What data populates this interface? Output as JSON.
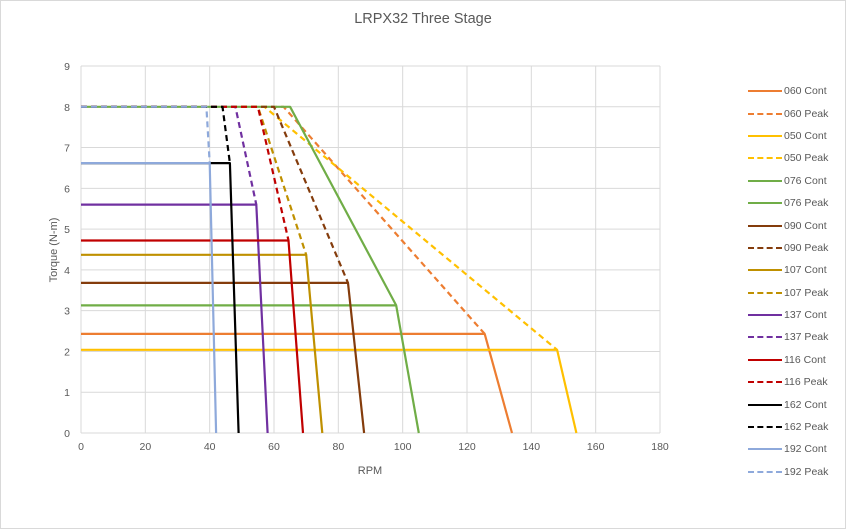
{
  "chart_data": {
    "type": "line",
    "title": "LRPX32 Three Stage",
    "xlabel": "RPM",
    "ylabel": "Torque (N-m)",
    "xlim": [
      0,
      180
    ],
    "ylim": [
      0,
      9
    ],
    "x_ticks": [
      0,
      20,
      40,
      60,
      80,
      100,
      120,
      140,
      160,
      180
    ],
    "y_ticks": [
      0,
      1,
      2,
      3,
      4,
      5,
      6,
      7,
      8,
      9
    ],
    "grid": true,
    "legend_position": "right",
    "series": [
      {
        "name": "060 Cont",
        "color": "#ED7D31",
        "dash": false,
        "points": [
          [
            0,
            2.43
          ],
          [
            125.5,
            2.43
          ],
          [
            134,
            0
          ]
        ]
      },
      {
        "name": "060 Peak",
        "color": "#ED7D31",
        "dash": true,
        "points": [
          [
            0,
            8
          ],
          [
            63,
            8
          ],
          [
            125.5,
            2.43
          ]
        ]
      },
      {
        "name": "050 Cont",
        "color": "#FFC000",
        "dash": false,
        "points": [
          [
            0,
            2.04
          ],
          [
            148,
            2.04
          ],
          [
            154,
            0
          ]
        ]
      },
      {
        "name": "050 Peak",
        "color": "#FFC000",
        "dash": true,
        "points": [
          [
            0,
            8
          ],
          [
            57,
            8
          ],
          [
            148,
            2.04
          ]
        ]
      },
      {
        "name": "076 Cont",
        "color": "#70AD47",
        "dash": false,
        "points": [
          [
            0,
            3.13
          ],
          [
            98,
            3.13
          ],
          [
            105,
            0
          ]
        ]
      },
      {
        "name": "076 Peak",
        "color": "#70AD47",
        "dash": false,
        "points": [
          [
            0,
            8
          ],
          [
            65,
            8
          ],
          [
            98,
            3.13
          ]
        ]
      },
      {
        "name": "090 Cont",
        "color": "#843C0C",
        "dash": false,
        "points": [
          [
            0,
            3.68
          ],
          [
            83,
            3.68
          ],
          [
            88,
            0
          ]
        ]
      },
      {
        "name": "090 Peak",
        "color": "#843C0C",
        "dash": true,
        "points": [
          [
            0,
            8
          ],
          [
            60,
            8
          ],
          [
            83,
            3.68
          ]
        ]
      },
      {
        "name": "107 Cont",
        "color": "#BF9000",
        "dash": false,
        "points": [
          [
            0,
            4.37
          ],
          [
            70,
            4.37
          ],
          [
            75,
            0
          ]
        ]
      },
      {
        "name": "107 Peak",
        "color": "#BF9000",
        "dash": true,
        "points": [
          [
            0,
            8
          ],
          [
            55,
            8
          ],
          [
            70,
            4.37
          ]
        ]
      },
      {
        "name": "137 Cont",
        "color": "#7030A0",
        "dash": false,
        "points": [
          [
            0,
            5.6
          ],
          [
            54.5,
            5.6
          ],
          [
            58,
            0
          ]
        ]
      },
      {
        "name": "137 Peak",
        "color": "#7030A0",
        "dash": true,
        "points": [
          [
            0,
            8
          ],
          [
            48,
            8
          ],
          [
            54.5,
            5.6
          ]
        ]
      },
      {
        "name": "116 Cont",
        "color": "#C00000",
        "dash": false,
        "points": [
          [
            0,
            4.72
          ],
          [
            64.5,
            4.72
          ],
          [
            69,
            0
          ]
        ]
      },
      {
        "name": "116 Peak",
        "color": "#C00000",
        "dash": true,
        "points": [
          [
            0,
            8
          ],
          [
            55,
            8
          ],
          [
            64.5,
            4.72
          ]
        ]
      },
      {
        "name": "162 Cont",
        "color": "#000000",
        "dash": false,
        "points": [
          [
            0,
            6.62
          ],
          [
            46.3,
            6.62
          ],
          [
            49,
            0
          ]
        ]
      },
      {
        "name": "162 Peak",
        "color": "#000000",
        "dash": true,
        "points": [
          [
            0,
            8
          ],
          [
            44,
            8
          ],
          [
            46.3,
            6.62
          ]
        ]
      },
      {
        "name": "192 Cont",
        "color": "#8EA9DB",
        "dash": false,
        "points": [
          [
            0,
            6.62
          ],
          [
            40,
            6.62
          ],
          [
            42,
            0
          ]
        ]
      },
      {
        "name": "192 Peak",
        "color": "#8EA9DB",
        "dash": true,
        "points": [
          [
            0,
            8
          ],
          [
            39,
            8
          ],
          [
            40,
            6.62
          ]
        ]
      }
    ]
  }
}
